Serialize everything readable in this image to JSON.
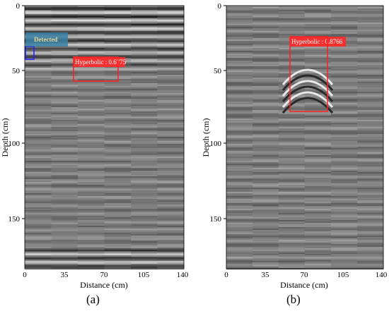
{
  "panels": [
    {
      "id": "a",
      "caption": "(a)",
      "xlabel": "Distance (cm)",
      "ylabel": "Depth (cm)",
      "xticks": [
        "0",
        "35",
        "70",
        "105",
        "140"
      ],
      "yticks": [
        "0",
        "50",
        "100",
        "150"
      ],
      "detections": [
        {
          "label": "Hyperbolic : 0.6775"
        }
      ],
      "tag": "Detected"
    },
    {
      "id": "b",
      "caption": "(b)",
      "xlabel": "Distance (cm)",
      "ylabel": "Depth (cm)",
      "xticks": [
        "0",
        "35",
        "70",
        "105",
        "140"
      ],
      "yticks": [
        "0",
        "50",
        "100",
        "150"
      ],
      "detections": [
        {
          "label": "Hyperbolic : 0.8766"
        }
      ]
    }
  ],
  "colors": {
    "detection_box": "#ff2020",
    "detection_fill": "#f23030",
    "tag_fill": "#3a7fa6",
    "small_box": "#2020ff"
  }
}
